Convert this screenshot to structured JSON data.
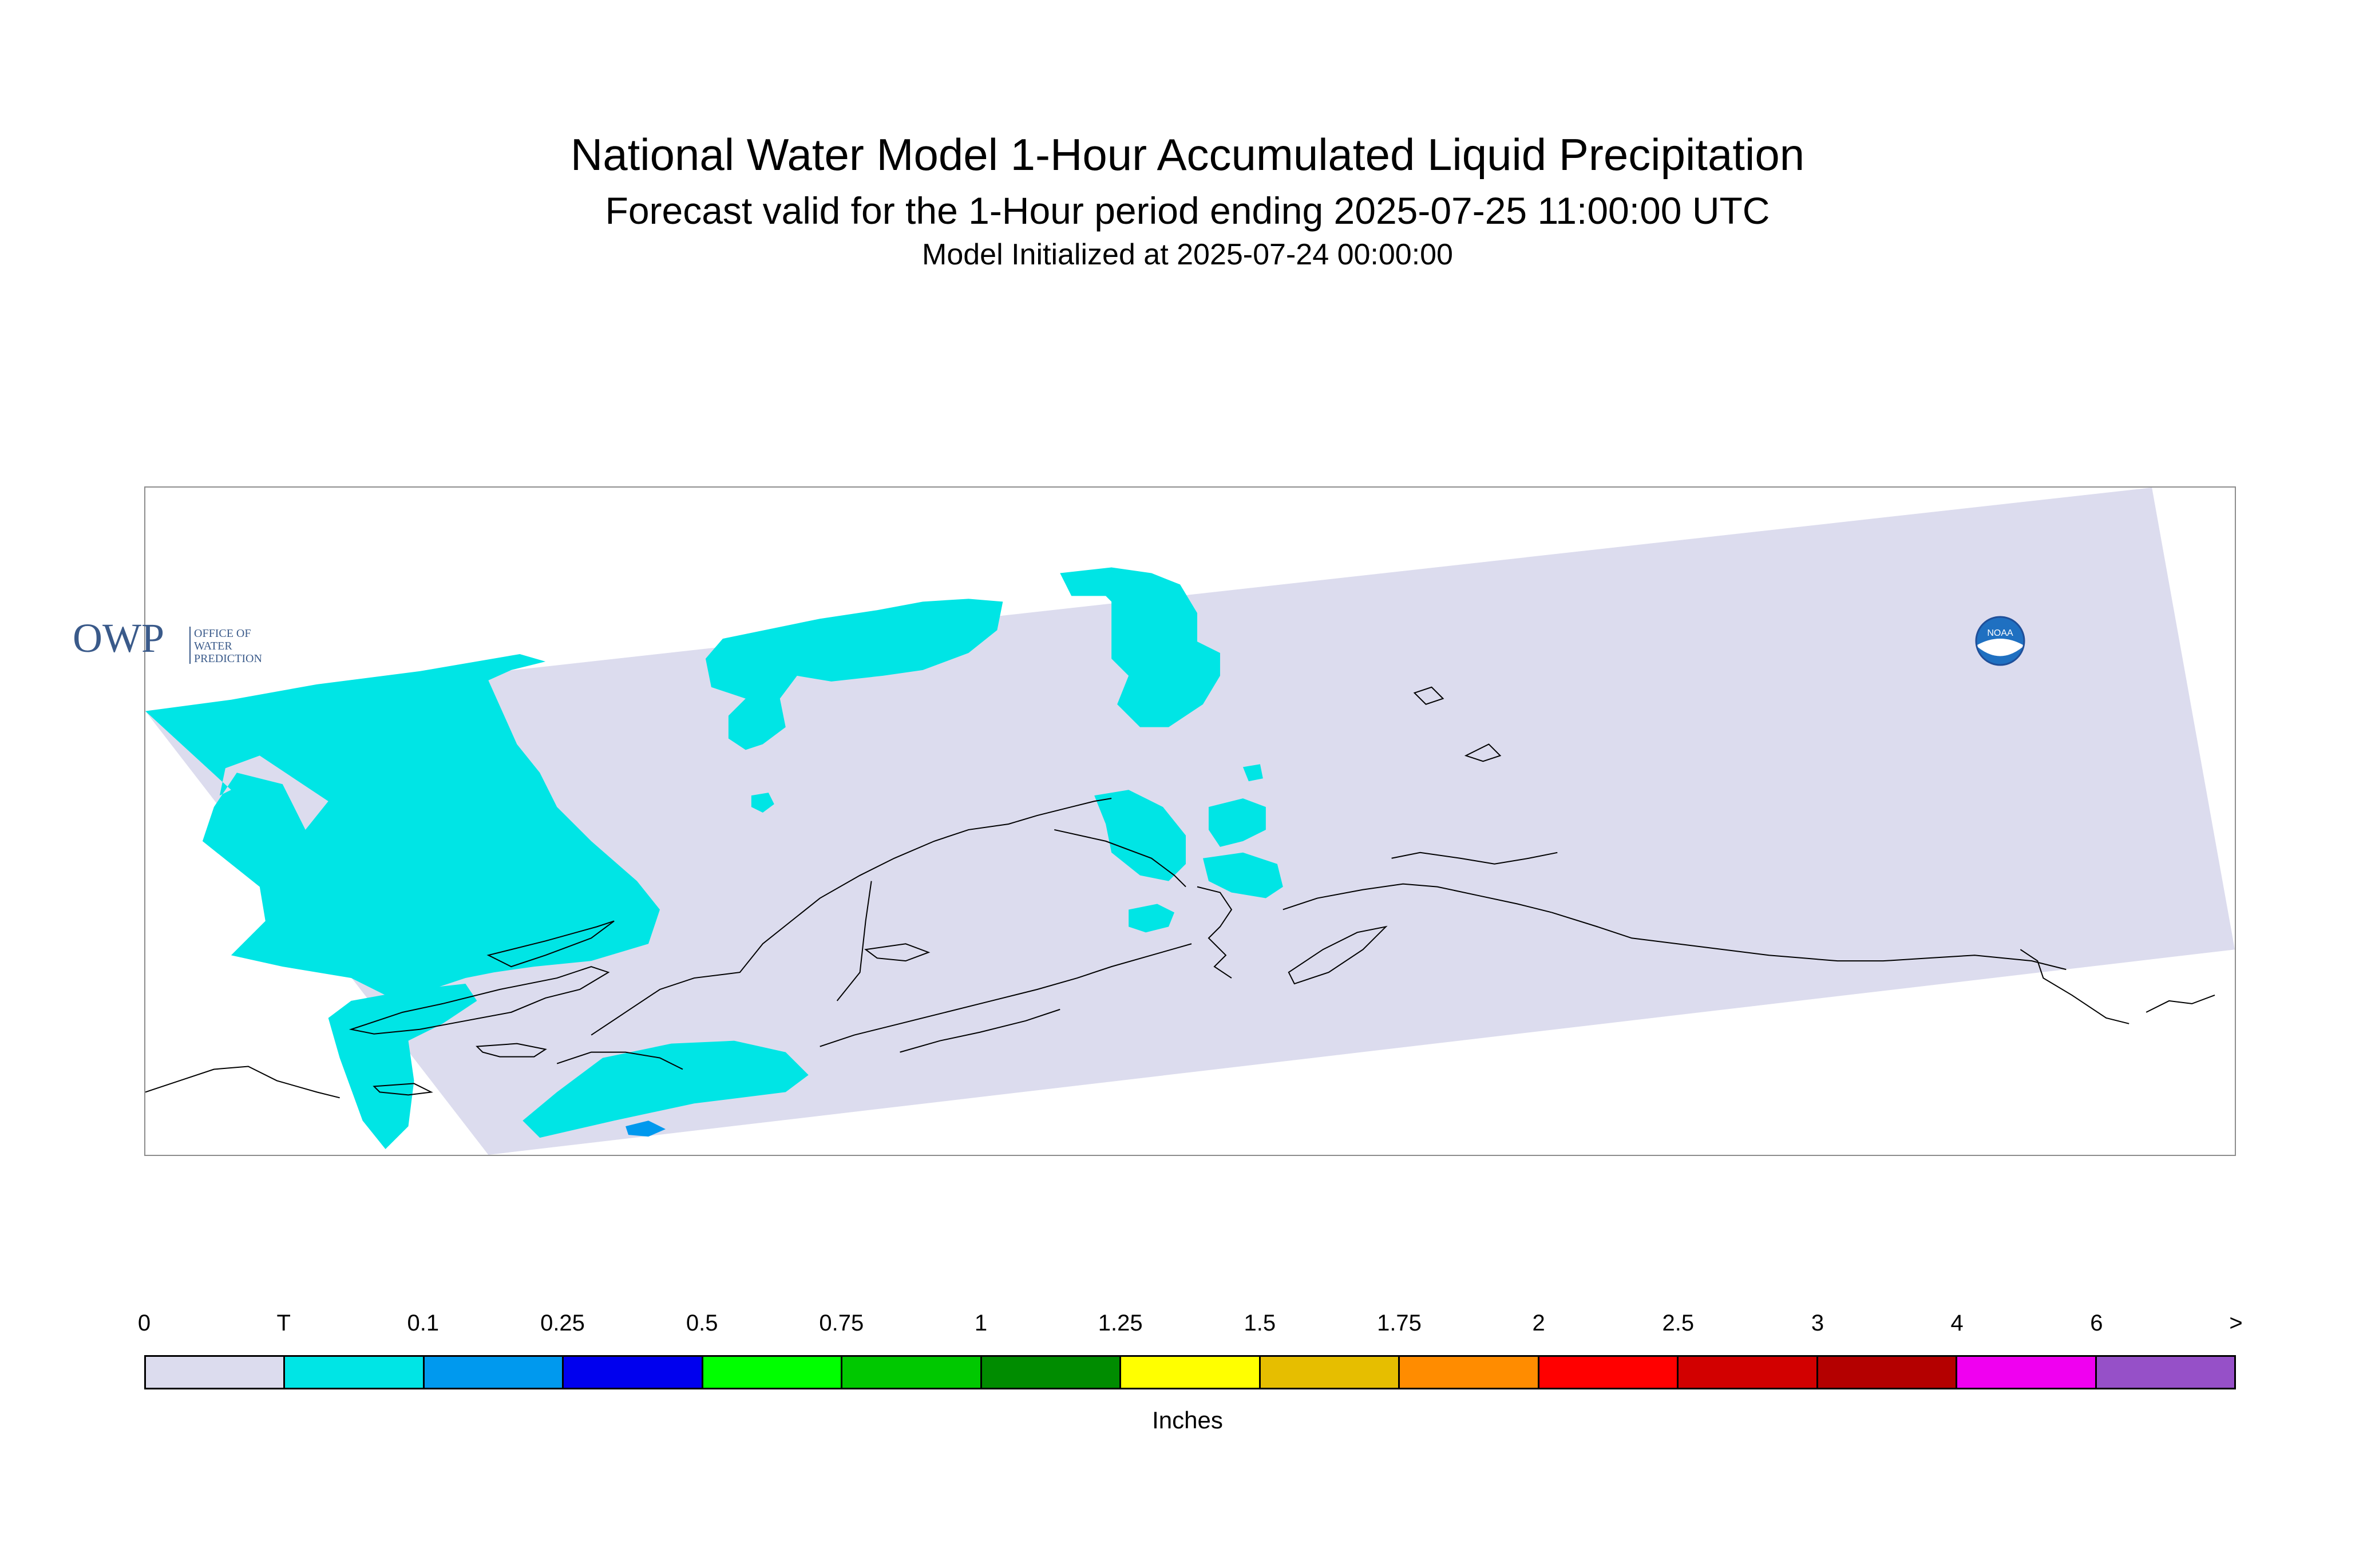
{
  "title": "National Water Model 1-Hour Accumulated Liquid Precipitation",
  "subtitle": "Forecast valid for the 1-Hour period ending 2025-07-25 11:00:00 UTC",
  "init_line": "Model Initialized at 2025-07-24 00:00:00",
  "logos": {
    "owp_mark": "OWP",
    "owp_text_1": "OFFICE OF",
    "owp_text_2": "WATER",
    "owp_text_3": "PREDICTION",
    "noaa_mark": "NOAA"
  },
  "legend": {
    "ticks": [
      "0",
      "T",
      "0.1",
      "0.25",
      "0.5",
      "0.75",
      "1",
      "1.25",
      "1.5",
      "1.75",
      "2",
      "2.5",
      "3",
      "4",
      "6",
      ">"
    ],
    "colors": [
      "#dcdcee",
      "#00e5e5",
      "#0099ee",
      "#0000ee",
      "#00ff00",
      "#00c800",
      "#008c00",
      "#ffff00",
      "#e6be00",
      "#ff8c00",
      "#ff0000",
      "#d20000",
      "#b40000",
      "#f000f0",
      "#9650c8"
    ],
    "unit_label": "Inches"
  },
  "map_colors": {
    "domain": "#dcdcee",
    "trace": "#00e5e5",
    "light": "#0099ee",
    "coast": "#000000",
    "frame": "#8c8c8c"
  }
}
